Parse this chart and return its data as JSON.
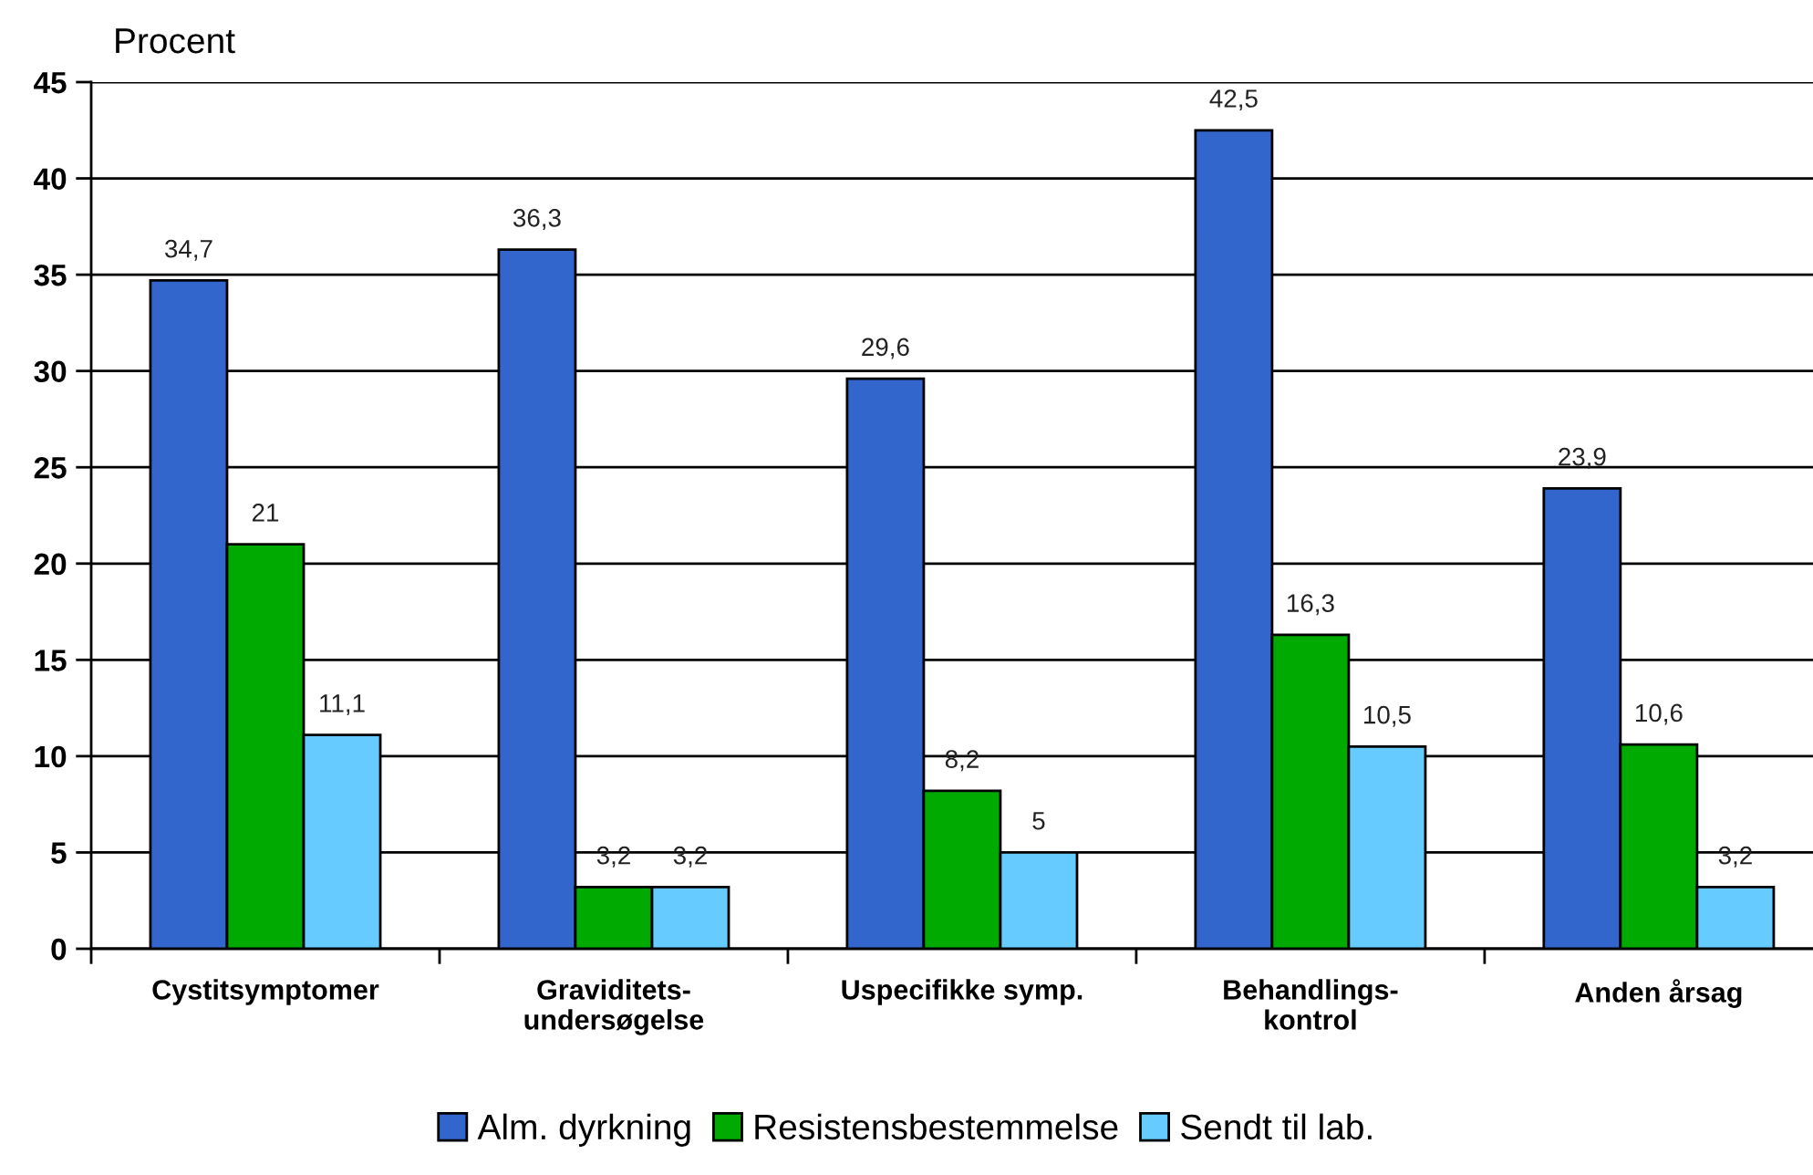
{
  "chart_data": {
    "type": "bar",
    "ylabel": "Procent",
    "categories": [
      "Cystitsymptomer",
      "Graviditets-\nundersøgelse",
      "Uspecifikke symp.",
      "Behandlings-\nkontrol",
      "Anden årsag"
    ],
    "series": [
      {
        "name": "Alm. dyrkning",
        "color": "#3366cc",
        "values": [
          34.7,
          36.3,
          29.6,
          42.5,
          23.9
        ],
        "value_labels": [
          "34,7",
          "36,3",
          "29,6",
          "42,5",
          "23,9"
        ]
      },
      {
        "name": "Resistensbestemmelse",
        "color": "#00aa00",
        "values": [
          21,
          3.2,
          8.2,
          16.3,
          10.6
        ],
        "value_labels": [
          "21",
          "3,2",
          "8,2",
          "16,3",
          "10,6"
        ]
      },
      {
        "name": "Sendt til lab.",
        "color": "#66ccff",
        "values": [
          11.1,
          3.2,
          5,
          10.5,
          3.2
        ],
        "value_labels": [
          "11,1",
          "3,2",
          "5",
          "10,5",
          "3,2"
        ]
      }
    ],
    "ylim": [
      0,
      45
    ],
    "yticks": [
      0,
      5,
      10,
      15,
      20,
      25,
      30,
      35,
      40,
      45
    ],
    "grid": "y",
    "legend": "bottom"
  }
}
